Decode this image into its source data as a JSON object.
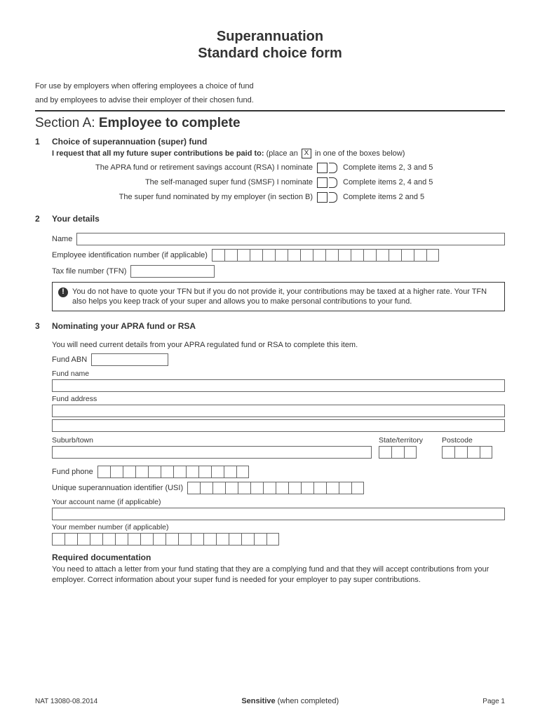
{
  "title": {
    "line1": "Superannuation",
    "line2": "Standard choice form"
  },
  "intro": {
    "line1": "For use by employers when offering employees a choice of fund",
    "line2": "and by employees to advise their employer of their chosen fund."
  },
  "sectionA": {
    "prefix": "Section A: ",
    "title": "Employee to complete"
  },
  "item1": {
    "num": "1",
    "title": "Choice of superannuation (super) fund",
    "request_bold": "I request that all my future super contributions be paid to:",
    "request_tail_a": " (place an ",
    "request_x": "X",
    "request_tail_b": " in one of the boxes below)",
    "opt1_left": "The APRA fund or retirement savings account (RSA) I nominate",
    "opt1_right": "Complete items 2, 3 and 5",
    "opt2_left": "The self-managed super fund (SMSF) I nominate",
    "opt2_right": "Complete items 2, 4 and 5",
    "opt3_left": "The super fund nominated by my employer (in section B)",
    "opt3_right": "Complete items 2 and 5"
  },
  "item2": {
    "num": "2",
    "title": "Your details",
    "name_label": "Name",
    "ein_label": "Employee identification number (if applicable)",
    "tfn_label": "Tax file number (TFN)",
    "info_text": "You do not have to quote your TFN but if you do not provide it, your contributions may be taxed at a higher rate. Your TFN also helps you keep track of your super and allows you to make personal contributions to your fund.",
    "ein_cells": 18
  },
  "item3": {
    "num": "3",
    "title": "Nominating your APRA fund or RSA",
    "intro": "You will need current details from your APRA regulated fund or RSA to complete this item.",
    "fund_abn": "Fund ABN",
    "fund_name": "Fund name",
    "fund_address": "Fund address",
    "suburb": "Suburb/town",
    "state": "State/territory",
    "postcode": "Postcode",
    "fund_phone": "Fund phone",
    "phone_cells": 12,
    "usi_label": "Unique superannuation identifier (USI)",
    "usi_cells": 14,
    "acct_name": "Your account name (if applicable)",
    "member_num": "Your member number (if applicable)",
    "member_cells": 18,
    "req_doc_title": "Required documentation",
    "req_doc_text": "You need to attach a letter from your fund stating that they are a complying fund and that they will accept contributions from your employer. Correct information about your super fund is needed for your employer to pay super contributions."
  },
  "footer": {
    "left": "NAT 13080-08.2014",
    "mid_bold": "Sensitive",
    "mid_tail": " (when completed)",
    "right": "Page 1"
  },
  "colors": {
    "text": "#333333",
    "border": "#666666",
    "rule": "#333333"
  }
}
